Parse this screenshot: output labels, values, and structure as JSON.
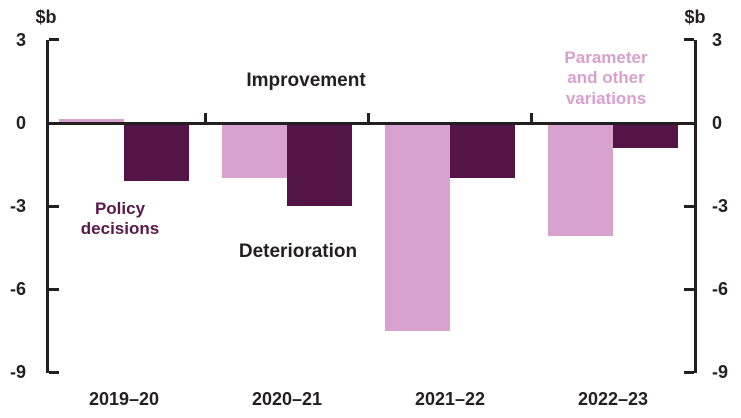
{
  "chart": {
    "unit_left": "$b",
    "unit_right": "$b",
    "labels": {
      "improvement": "Improvement",
      "deterioration": "Deterioration",
      "policy": "Policy\ndecisions",
      "parameter": "Parameter\nand other\nvariations"
    }
  },
  "chart_data": {
    "type": "bar",
    "title": "",
    "categories": [
      "2019–20",
      "2020–21",
      "2021–22",
      "2022–23"
    ],
    "series": [
      {
        "name": "Parameter and other variations",
        "color": "#D7A3CE",
        "values": [
          0.15,
          -2.0,
          -7.5,
          -4.1
        ]
      },
      {
        "name": "Policy decisions",
        "color": "#541445",
        "values": [
          -2.1,
          -3.0,
          -2.0,
          -0.9
        ]
      }
    ],
    "ylabel": "$b",
    "ylim": [
      -9,
      3
    ],
    "y_ticks": [
      3,
      0,
      -3,
      -6,
      -9
    ],
    "grid": false,
    "axis_color": "#231F20",
    "legend_position": "in-plot text annotations",
    "annotations": [
      "Improvement",
      "Deterioration",
      "Policy decisions",
      "Parameter and other variations"
    ]
  }
}
